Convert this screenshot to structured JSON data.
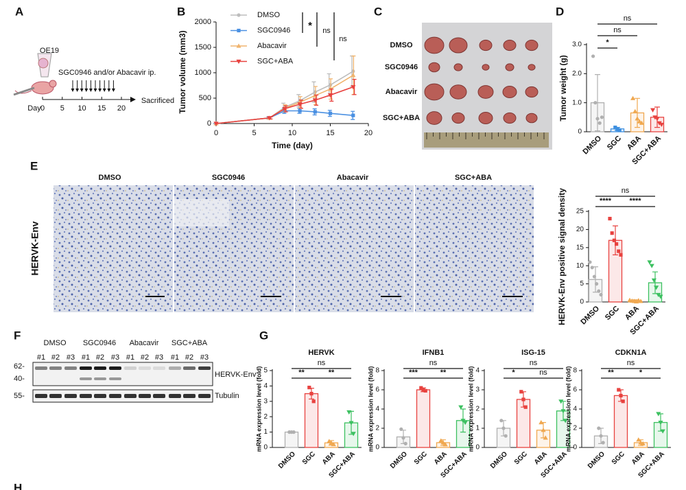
{
  "figure": {
    "panel_labels": [
      "A",
      "B",
      "C",
      "D",
      "E",
      "F",
      "G",
      "H"
    ]
  },
  "schematic": {
    "cell_line": "OE19",
    "treatment": "SGC0946 and/or Abacavir ip.",
    "timeline_label": "Day",
    "timeline_ticks": [
      0,
      5,
      10,
      15,
      20
    ],
    "endpoint": "Sacrificed"
  },
  "photo": {
    "rows": [
      "DMSO",
      "SGC0946",
      "Abacavir",
      "SGC+ABA"
    ]
  },
  "histology": {
    "stain": "HERVK-Env",
    "groups": [
      "DMSO",
      "SGC0946",
      "Abacavir",
      "SGC+ABA"
    ]
  },
  "blot": {
    "groups": [
      "DMSO",
      "SGC0946",
      "Abacavir",
      "SGC+ABA"
    ],
    "lanes": [
      "#1",
      "#2",
      "#3"
    ],
    "markers": [
      "62-",
      "40-",
      "55-"
    ],
    "targets": [
      "HERVK-Env",
      "Tubulin"
    ]
  },
  "chart_data": [
    {
      "type": "line",
      "xlabel": "Time (day)",
      "ylabel": "Tumor volume (mm3)",
      "x": [
        0,
        7,
        9,
        11,
        13,
        15,
        18
      ],
      "series": [
        {
          "name": "DMSO",
          "color": "#bdbdbd",
          "values": [
            0,
            110,
            320,
            450,
            620,
            760,
            1030
          ],
          "errors": [
            0,
            20,
            80,
            120,
            200,
            220,
            300
          ]
        },
        {
          "name": "SGC0946",
          "color": "#4a90e2",
          "values": [
            0,
            110,
            250,
            250,
            230,
            200,
            160
          ],
          "errors": [
            0,
            20,
            50,
            50,
            60,
            60,
            80
          ]
        },
        {
          "name": "Abacavir",
          "color": "#f0b46e",
          "values": [
            0,
            110,
            300,
            420,
            550,
            680,
            950
          ],
          "errors": [
            0,
            20,
            70,
            110,
            180,
            200,
            380
          ]
        },
        {
          "name": "SGC+ABA",
          "color": "#e8423f",
          "values": [
            0,
            110,
            290,
            380,
            460,
            560,
            720
          ],
          "errors": [
            0,
            20,
            60,
            80,
            100,
            120,
            150
          ]
        }
      ],
      "annotations": [
        "*",
        "ns",
        "ns"
      ],
      "xlim": [
        0,
        20
      ],
      "xticks": [
        0,
        5,
        10,
        15,
        20
      ],
      "ylim": [
        0,
        2000
      ],
      "yticks": [
        0,
        500,
        1000,
        1500,
        2000
      ]
    },
    {
      "type": "bar",
      "ylabel": "Tumor weight (g)",
      "categories": [
        "DMSO",
        "SGC",
        "ABA",
        "SGC+ABA"
      ],
      "values": [
        1.0,
        0.1,
        0.65,
        0.5
      ],
      "errors": [
        0.97,
        0.05,
        0.5,
        0.35
      ],
      "points": [
        [
          2.6,
          1.0,
          0.45,
          0.3,
          0.5
        ],
        [
          0.15,
          0.08,
          0.05
        ],
        [
          1.15,
          0.7,
          0.45,
          0.35,
          0.3
        ],
        [
          0.75,
          0.5,
          0.45,
          0.3,
          0.25
        ]
      ],
      "colors": [
        "#b0b0b0",
        "#3d8fe0",
        "#f0a850",
        "#e8423f"
      ],
      "annotations": [
        "ns",
        "ns",
        "*"
      ],
      "ylim": [
        0,
        3
      ],
      "yticks": [
        0,
        {
          "value": 1,
          "label": "1.0"
        },
        {
          "value": 2,
          "label": "2.0"
        },
        {
          "value": 3,
          "label": "3.0"
        }
      ]
    },
    {
      "type": "bar",
      "ylabel": "HERVK-Env positive signal density",
      "categories": [
        "DMSO",
        "SGC",
        "ABA",
        "SGC+ABA"
      ],
      "values": [
        6.2,
        17,
        0.3,
        5.3
      ],
      "errors": [
        3.5,
        4,
        0.3,
        3
      ],
      "points": [
        [
          11,
          9.5,
          7,
          5,
          3,
          2
        ],
        [
          23,
          19,
          17,
          16,
          14,
          13
        ],
        [
          0.5,
          0.3,
          0.2,
          0.1,
          0.4,
          0.2
        ],
        [
          11,
          10,
          6,
          4,
          2,
          1.5
        ]
      ],
      "colors": [
        "#b0b0b0",
        "#e8423f",
        "#f0a850",
        "#3cc060"
      ],
      "annotations": [
        "ns",
        "****",
        "****"
      ],
      "ylim": [
        0,
        25
      ],
      "yticks": [
        0,
        5,
        10,
        15,
        20,
        25
      ]
    },
    {
      "type": "bar",
      "title": "HERVK",
      "ylabel": "mRNA expression level (fold)",
      "categories": [
        "DMSO",
        "SGC",
        "ABA",
        "SGC+ABA"
      ],
      "values": [
        1.0,
        3.5,
        0.3,
        1.6
      ],
      "errors": [
        0.05,
        0.35,
        0.15,
        0.75
      ],
      "points": [
        [
          1,
          1,
          1
        ],
        [
          3.9,
          3.5,
          3.0
        ],
        [
          0.4,
          0.3,
          0.2
        ],
        [
          2.3,
          1.6,
          0.9
        ]
      ],
      "colors": [
        "#b0b0b0",
        "#e8423f",
        "#f0a850",
        "#3cc060"
      ],
      "annotations": [
        "ns",
        "**",
        "**"
      ],
      "ylim": [
        0,
        5
      ],
      "yticks": [
        0,
        1,
        2,
        3,
        4,
        5
      ]
    },
    {
      "type": "bar",
      "title": "IFNB1",
      "ylabel": "mRNA expression level (fold)",
      "categories": [
        "DMSO",
        "SGC",
        "ABA",
        "SGC+ABA"
      ],
      "values": [
        1.1,
        6.0,
        0.5,
        2.8
      ],
      "errors": [
        0.7,
        0.2,
        0.3,
        1.2
      ],
      "points": [
        [
          1.9,
          1.0,
          0.4
        ],
        [
          6.2,
          6.0,
          5.9
        ],
        [
          0.7,
          0.5,
          0.3
        ],
        [
          4.2,
          2.8,
          2.6
        ]
      ],
      "colors": [
        "#b0b0b0",
        "#e8423f",
        "#f0a850",
        "#3cc060"
      ],
      "annotations": [
        "ns",
        "***",
        "**"
      ],
      "ylim": [
        0,
        8
      ],
      "yticks": [
        0,
        2,
        4,
        6,
        8
      ]
    },
    {
      "type": "bar",
      "title": "ISG-15",
      "ylabel": "mRNA expression level (fold)",
      "categories": [
        "DMSO",
        "SGC",
        "ABA",
        "SGC+ABA"
      ],
      "values": [
        1.0,
        2.5,
        0.9,
        1.9
      ],
      "errors": [
        0.4,
        0.4,
        0.4,
        0.5
      ],
      "points": [
        [
          1.4,
          1.0,
          0.6
        ],
        [
          2.9,
          2.5,
          2.1
        ],
        [
          1.3,
          0.9,
          0.5
        ],
        [
          2.4,
          1.9,
          1.4
        ]
      ],
      "colors": [
        "#b0b0b0",
        "#e8423f",
        "#f0a850",
        "#3cc060"
      ],
      "annotations": [
        "ns",
        "*",
        "ns"
      ],
      "ylim": [
        0,
        4
      ],
      "yticks": [
        0,
        1,
        2,
        3,
        4
      ]
    },
    {
      "type": "bar",
      "title": "CDKN1A",
      "ylabel": "mRNA expression level (fold)",
      "categories": [
        "DMSO",
        "SGC",
        "ABA",
        "SGC+ABA"
      ],
      "values": [
        1.2,
        5.4,
        0.5,
        2.6
      ],
      "errors": [
        0.8,
        0.6,
        0.3,
        0.9
      ],
      "points": [
        [
          2.0,
          1.2,
          0.5
        ],
        [
          6.0,
          5.4,
          4.8
        ],
        [
          0.8,
          0.5,
          0.4
        ],
        [
          3.5,
          2.6,
          1.7
        ]
      ],
      "colors": [
        "#b0b0b0",
        "#e8423f",
        "#f0a850",
        "#3cc060"
      ],
      "annotations": [
        "ns",
        "**",
        "*"
      ],
      "ylim": [
        0,
        8
      ],
      "yticks": [
        0,
        2,
        4,
        6,
        8
      ]
    }
  ]
}
